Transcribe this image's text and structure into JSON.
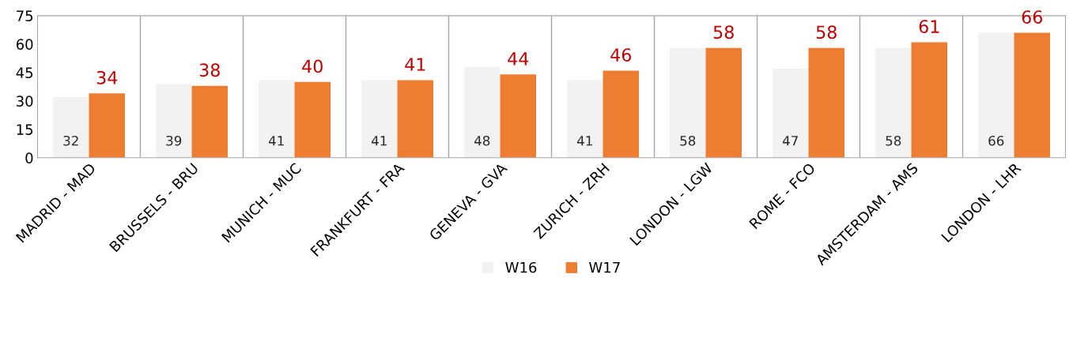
{
  "chart_data": {
    "type": "bar",
    "categories": [
      "MADRID - MAD",
      "BRUSSELS - BRU",
      "MUNICH - MUC",
      "FRANKFURT - FRA",
      "GENEVA - GVA",
      "ZURICH - ZRH",
      "LONDON - LGW",
      "ROME - FCO",
      "AMSTERDAM - AMS",
      "LONDON - LHR"
    ],
    "series": [
      {
        "name": "W16",
        "color": "#f2f2f2",
        "values": [
          32,
          39,
          41,
          41,
          48,
          41,
          58,
          47,
          58,
          66
        ],
        "value_labels": [
          "32",
          "39",
          "41",
          "41",
          "48",
          "41",
          "58",
          "47",
          "58",
          "66"
        ]
      },
      {
        "name": "W17",
        "color": "#ed7d31",
        "values": [
          34,
          38,
          40,
          41,
          44,
          46,
          58,
          58,
          61,
          66
        ],
        "value_labels": [
          "34",
          "38",
          "40",
          "41",
          "44",
          "46",
          "58",
          "58",
          "61",
          "66"
        ]
      }
    ],
    "ylim": [
      0,
      75
    ],
    "yticks": [
      0,
      15,
      30,
      45,
      60,
      75
    ],
    "grid": "x",
    "legend": "bottom"
  }
}
